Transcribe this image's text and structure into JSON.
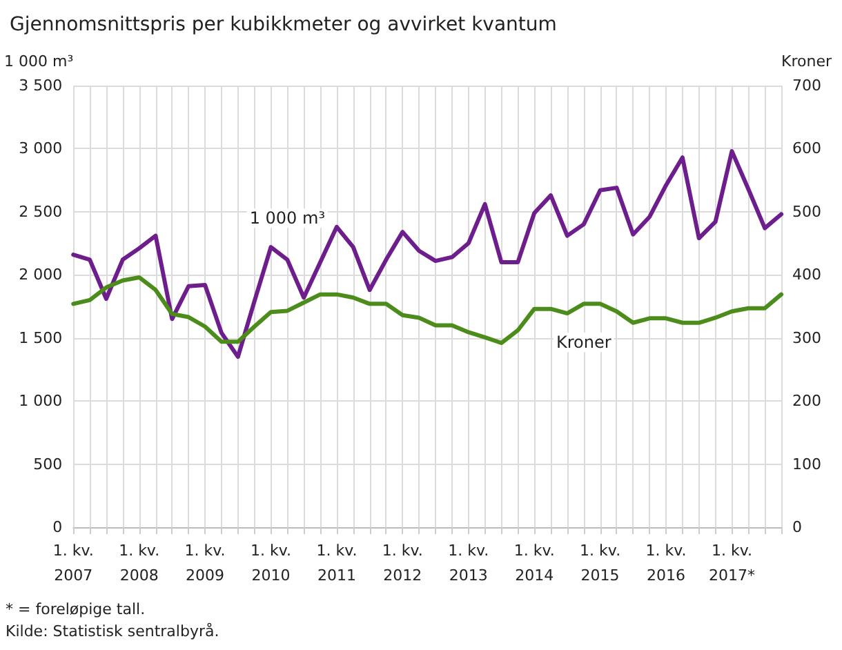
{
  "chart_data": {
    "type": "line",
    "title": "Gjennomsnittspris per kubikkmeter og avvirket kvantum",
    "ylabel": "1 000 m³",
    "y2label": "Kroner",
    "categories": [
      "1. kv.\n2007",
      null,
      null,
      null,
      "1. kv.\n2008",
      null,
      null,
      null,
      "1. kv.\n2009",
      null,
      null,
      null,
      "1. kv.\n2010",
      null,
      null,
      null,
      "1. kv.\n2011",
      null,
      null,
      null,
      "1. kv.\n2012",
      null,
      null,
      null,
      "1. kv.\n2013",
      null,
      null,
      null,
      "1. kv.\n2014",
      null,
      null,
      null,
      "1. kv.\n2015",
      null,
      null,
      null,
      "1. kv.\n2016",
      null,
      null,
      null,
      "1. kv.\n2017*",
      null,
      null,
      null
    ],
    "series": [
      {
        "name": "1 000 m³",
        "color": "#6e1e8c",
        "values": [
          2160,
          2120,
          1810,
          2120,
          2210,
          2310,
          1650,
          1910,
          1920,
          1540,
          1350,
          1790,
          2220,
          2120,
          1820,
          2100,
          2380,
          2220,
          1880,
          2120,
          2340,
          2190,
          2110,
          2140,
          2250,
          2560,
          2100,
          2100,
          2490,
          2630,
          2310,
          2400,
          2670,
          2690,
          2320,
          2460,
          2710,
          2930,
          2290,
          2420,
          2980,
          2680,
          2370,
          2480
        ]
      },
      {
        "name": "Kroner",
        "color": "#4b8c1a",
        "axis": "y2",
        "values": [
          354,
          360,
          380,
          391,
          396,
          376,
          338,
          333,
          318,
          294,
          294,
          318,
          341,
          343,
          356,
          369,
          369,
          364,
          354,
          354,
          336,
          332,
          320,
          320,
          309,
          301,
          292,
          312,
          346,
          346,
          339,
          354,
          354,
          342,
          324,
          331,
          331,
          324,
          324,
          332,
          342,
          347,
          347,
          369
        ]
      }
    ],
    "ylim": [
      0,
      3500
    ],
    "yticks": [
      0,
      {
        "value": 500,
        "label": "500"
      },
      {
        "value": 1000,
        "label": "1 000"
      },
      {
        "value": 1500,
        "label": "1 500"
      },
      {
        "value": 2000,
        "label": "2 000"
      },
      {
        "value": 2500,
        "label": "2 500"
      },
      {
        "value": 3000,
        "label": "3 000"
      },
      {
        "value": 3500,
        "label": "3 500"
      }
    ],
    "y2lim": [
      0,
      700
    ],
    "y2ticks": [
      0,
      100,
      200,
      300,
      400,
      500,
      600,
      700
    ],
    "grid": true,
    "marker": "none",
    "line_style": "solid",
    "annotations": [
      "* = foreløpige tall.",
      "Kilde: Statistisk sentralbyrå."
    ]
  }
}
